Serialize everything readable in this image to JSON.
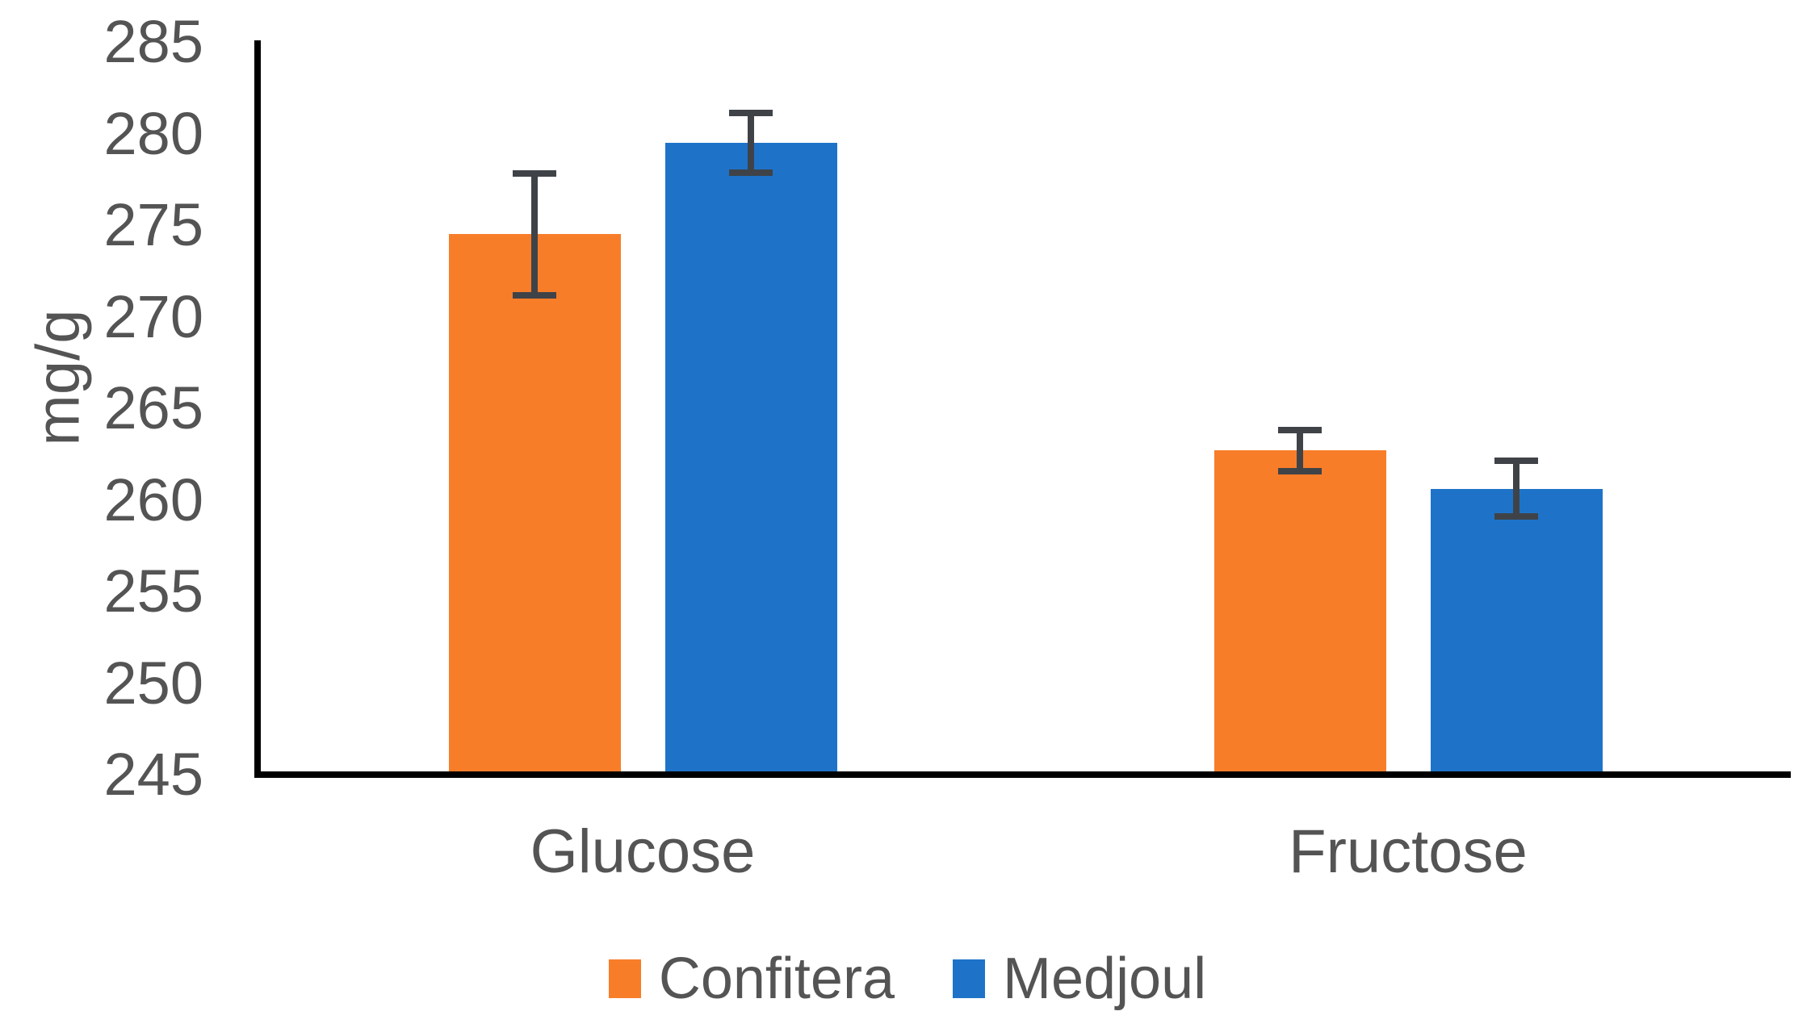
{
  "chart_data": {
    "type": "bar",
    "title": "",
    "xlabel": "",
    "ylabel": "mg/g",
    "categories": [
      "Glucose",
      "Fructose"
    ],
    "series": [
      {
        "name": "Confitera",
        "color": "#F87D29",
        "values": [
          274.5,
          262.7
        ],
        "errors": [
          3.5,
          1.3
        ]
      },
      {
        "name": "Medjoul",
        "color": "#1E73C8",
        "values": [
          279.5,
          260.6
        ],
        "errors": [
          1.8,
          1.7
        ]
      }
    ],
    "ylim": [
      245,
      285
    ],
    "ytick_step": 5,
    "yticks": [
      285,
      280,
      275,
      270,
      265,
      260,
      255,
      250,
      245
    ],
    "grid": false,
    "legend_position": "bottom",
    "axis_color": "#000000",
    "error_bar_color": "#3F4348",
    "text_color": "#545454"
  }
}
